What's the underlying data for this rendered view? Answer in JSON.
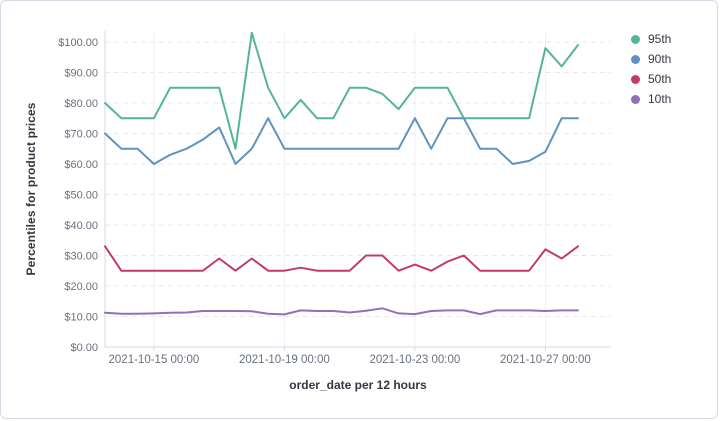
{
  "chart": {
    "y_axis_title": "Percentiles for product prices",
    "x_axis_title": "order_date per 12 hours",
    "y_tick_labels": [
      "$0.00",
      "$10.00",
      "$20.00",
      "$30.00",
      "$40.00",
      "$50.00",
      "$60.00",
      "$70.00",
      "$80.00",
      "$90.00",
      "$100.00"
    ],
    "x_tick_labels": [
      "2021-10-15 00:00",
      "2021-10-19 00:00",
      "2021-10-23 00:00",
      "2021-10-27 00:00"
    ]
  },
  "legend": {
    "items": [
      {
        "label": "95th",
        "color": "#54B399"
      },
      {
        "label": "90th",
        "color": "#6092C0"
      },
      {
        "label": "50th",
        "color": "#C4396B"
      },
      {
        "label": "10th",
        "color": "#9170B8"
      }
    ]
  },
  "colors": {
    "axis_line": "#d3dae6",
    "grid_dashed": "#e6eaf0",
    "grid_vertical": "#eceff5",
    "tick_text": "#69707d",
    "title_text": "#343741"
  },
  "chart_data": {
    "type": "line",
    "title": "",
    "xlabel": "order_date per 12 hours",
    "ylabel": "Percentiles for product prices",
    "ylim": [
      0,
      103.6
    ],
    "y_tick_step": 10,
    "y_tick_prefix": "$",
    "grid": {
      "horizontal": "dashed",
      "vertical": "solid"
    },
    "legend_position": "right",
    "x": [
      "2021-10-13 12:00",
      "2021-10-14 00:00",
      "2021-10-14 12:00",
      "2021-10-15 00:00",
      "2021-10-15 12:00",
      "2021-10-16 00:00",
      "2021-10-16 12:00",
      "2021-10-17 00:00",
      "2021-10-17 12:00",
      "2021-10-18 00:00",
      "2021-10-18 12:00",
      "2021-10-19 00:00",
      "2021-10-19 12:00",
      "2021-10-20 00:00",
      "2021-10-20 12:00",
      "2021-10-21 00:00",
      "2021-10-21 12:00",
      "2021-10-22 00:00",
      "2021-10-22 12:00",
      "2021-10-23 00:00",
      "2021-10-23 12:00",
      "2021-10-24 00:00",
      "2021-10-24 12:00",
      "2021-10-25 00:00",
      "2021-10-25 12:00",
      "2021-10-26 00:00",
      "2021-10-26 12:00",
      "2021-10-27 00:00",
      "2021-10-27 12:00",
      "2021-10-28 00:00"
    ],
    "x_ticks": [
      "2021-10-15 00:00",
      "2021-10-19 00:00",
      "2021-10-23 00:00",
      "2021-10-27 00:00"
    ],
    "series": [
      {
        "name": "95th",
        "color": "#54B399",
        "values": [
          80,
          75,
          75,
          75,
          85,
          85,
          85,
          85,
          65,
          103,
          85,
          75,
          81,
          75,
          75,
          85,
          85,
          83,
          78,
          85,
          85,
          85,
          75,
          75,
          75,
          75,
          75,
          98,
          92,
          99
        ]
      },
      {
        "name": "90th",
        "color": "#6092C0",
        "values": [
          70,
          65,
          65,
          60,
          63,
          65,
          68,
          72,
          60,
          65,
          75,
          65,
          65,
          65,
          65,
          65,
          65,
          65,
          65,
          75,
          65,
          75,
          75,
          65,
          65,
          60,
          61,
          64,
          75,
          75
        ]
      },
      {
        "name": "50th",
        "color": "#C4396B",
        "values": [
          33,
          25,
          25,
          25,
          25,
          25,
          25,
          29,
          25,
          29,
          25,
          25,
          26,
          25,
          25,
          25,
          30,
          30,
          25,
          27,
          25,
          28,
          30,
          25,
          25,
          25,
          25,
          32,
          29,
          33
        ]
      },
      {
        "name": "10th",
        "color": "#9170B8",
        "values": [
          11.2,
          10.9,
          10.9,
          11,
          11.2,
          11.3,
          11.8,
          11.8,
          11.8,
          11.7,
          10.9,
          10.7,
          12,
          11.8,
          11.8,
          11.3,
          11.9,
          12.7,
          11,
          10.8,
          11.8,
          12,
          12,
          10.8,
          12,
          12,
          12,
          11.8,
          12,
          12
        ]
      }
    ]
  }
}
